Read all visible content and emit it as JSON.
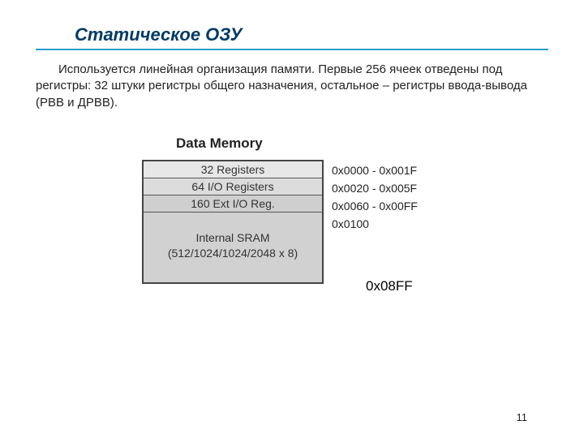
{
  "title": "Статическое ОЗУ",
  "paragraph": "Используется   линейная  организация  памяти. Первые 256 ячеек отведены под регистры: 32 штуки регистры общего назначения, остальное – регистры ввода-вывода (РВВ и ДРВВ).",
  "diagram": {
    "heading": "Data Memory",
    "rows": [
      {
        "label": "32 Registers",
        "addr": "0x0000 - 0x001F",
        "bg": "#e7e7e7"
      },
      {
        "label": "64 I/O Registers",
        "addr": "0x0020 - 0x005F",
        "bg": "#dcdcdc"
      },
      {
        "label": "160 Ext I/O Reg.",
        "addr": "0x0060 - 0x00FF",
        "bg": "#cfcfcf"
      }
    ],
    "sram_line1": "Internal SRAM",
    "sram_line2": "(512/1024/1024/2048 x 8)",
    "sram_start_addr": "0x0100",
    "sram_end_addr": "0x08FF",
    "border_color": "#444444",
    "addr_text_color": "#222222"
  },
  "page_number": "11",
  "colors": {
    "title": "#003a66",
    "rule": "#2aa0c8",
    "text": "#222222",
    "bg": "#ffffff"
  }
}
